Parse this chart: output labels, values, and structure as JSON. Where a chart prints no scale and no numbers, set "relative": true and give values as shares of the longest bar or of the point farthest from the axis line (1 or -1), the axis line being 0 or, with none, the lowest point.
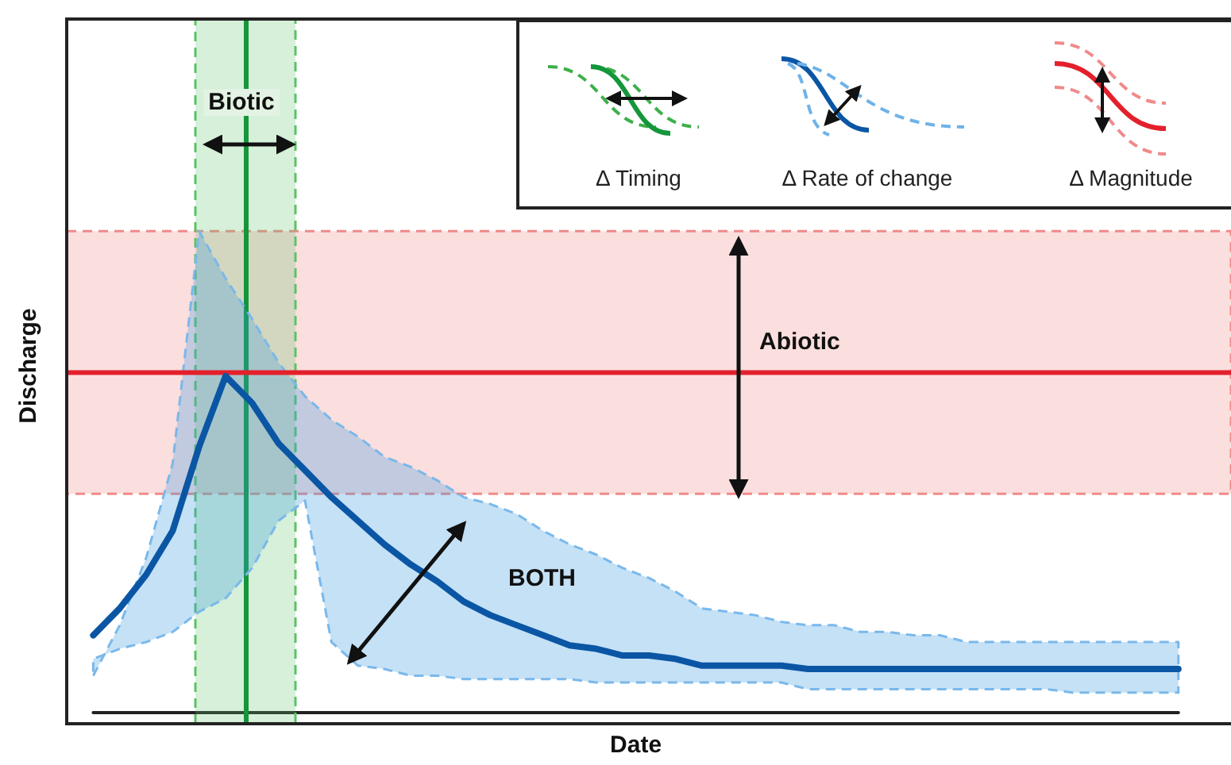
{
  "chart_data": {
    "type": "line",
    "relative": true,
    "xlabel": "Date",
    "ylabel": "Discharge",
    "categories": [
      null,
      null,
      null,
      null,
      null,
      null,
      null,
      null,
      null,
      null,
      null,
      null,
      null,
      null,
      null,
      null,
      null,
      null,
      null,
      null,
      null,
      null,
      null,
      null,
      null,
      null,
      null,
      null,
      null,
      null,
      null,
      null,
      null,
      null,
      null,
      null,
      null,
      null,
      null,
      null,
      null,
      null
    ],
    "series": [
      {
        "color": "#0b56a4",
        "values": [
          0.23,
          0.31,
          0.41,
          0.54,
          0.79,
          1.0,
          0.92,
          0.8,
          0.72,
          0.64,
          0.57,
          0.5,
          0.44,
          0.39,
          0.33,
          0.29,
          0.26,
          0.23,
          0.2,
          0.19,
          0.17,
          0.17,
          0.16,
          0.14,
          0.14,
          0.14,
          0.14,
          0.13,
          0.13,
          0.13,
          0.13,
          0.13,
          0.13,
          0.13,
          0.13,
          0.13,
          0.13,
          0.13,
          0.13,
          0.13,
          0.13,
          0.13
        ],
        "upper": [
          0.11,
          0.26,
          0.46,
          0.74,
          1.43,
          1.29,
          1.17,
          1.04,
          0.94,
          0.87,
          0.82,
          0.76,
          0.73,
          0.69,
          0.64,
          0.62,
          0.59,
          0.54,
          0.5,
          0.47,
          0.43,
          0.4,
          0.36,
          0.31,
          0.3,
          0.29,
          0.27,
          0.26,
          0.26,
          0.24,
          0.24,
          0.23,
          0.23,
          0.21,
          0.21,
          0.21,
          0.21,
          0.21,
          0.21,
          0.21,
          0.21,
          0.21
        ],
        "lower": [
          0.16,
          0.19,
          0.21,
          0.24,
          0.3,
          0.34,
          0.43,
          0.57,
          0.63,
          0.21,
          0.14,
          0.13,
          0.11,
          0.11,
          0.1,
          0.1,
          0.1,
          0.1,
          0.1,
          0.09,
          0.09,
          0.09,
          0.09,
          0.09,
          0.09,
          0.09,
          0.09,
          0.07,
          0.07,
          0.07,
          0.07,
          0.07,
          0.07,
          0.07,
          0.07,
          0.07,
          0.07,
          0.06,
          0.06,
          0.06,
          0.06,
          0.06
        ]
      }
    ],
    "ref_lines": [
      {
        "axis": "y",
        "value": 1.01,
        "color": "#e3202c"
      }
    ],
    "bands": [
      {
        "axis": "y",
        "from": 0.65,
        "to": 1.43,
        "color": "#f08a8a"
      }
    ],
    "annotations": [
      "Biotic",
      "Abiotic",
      "BOTH",
      "Δ Timing",
      "Δ Rate of change",
      "Δ Magnitude"
    ]
  }
}
